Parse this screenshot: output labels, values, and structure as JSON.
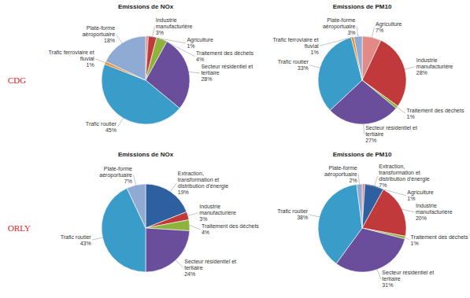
{
  "chart_data": [
    {
      "type": "pie",
      "title": "Emissions de NOx",
      "annotations": [
        "CDG"
      ],
      "categories": [
        "Agriculture",
        "Industrie manufacturière",
        "Traitement des déchets",
        "Secteur résidentiel et tertiaire",
        "Trafic routier",
        "Trafic ferroviaire et fluvial",
        "Plate-forme aéroportuaire"
      ],
      "values": [
        1,
        3,
        4,
        28,
        45,
        1,
        18
      ],
      "value_labels": [
        "1%",
        "3%",
        "4%",
        "28%",
        "45%",
        "1%",
        "18%"
      ],
      "colors": [
        "#e28b86",
        "#c0393b",
        "#8db33a",
        "#6a4d9b",
        "#3a9cc8",
        "#f08a24",
        "#8fabd4"
      ],
      "data_labels": true
    },
    {
      "type": "pie",
      "title": "Emissions de PM10",
      "categories": [
        "Agriculture",
        "Industrie manufacturière",
        "Traitement des déchets",
        "Secteur résidentiel et tertiaire",
        "Trafic routier",
        "Trafic ferroviaire et fluvial",
        "Plate-forme aéroportuaire"
      ],
      "values": [
        7,
        28,
        1,
        27,
        33,
        1,
        3
      ],
      "value_labels": [
        "7%",
        "28%",
        "1%",
        "27%",
        "33%",
        "1%",
        "3%"
      ],
      "colors": [
        "#e28b86",
        "#c0393b",
        "#8db33a",
        "#6a4d9b",
        "#3a9cc8",
        "#f08a24",
        "#8fabd4"
      ],
      "data_labels": true
    },
    {
      "type": "pie",
      "title": "Emissions de NOx",
      "annotations": [
        "ORLY"
      ],
      "categories": [
        "Extraction, transformation et distribution d'énergie",
        "Industrie manufacturière",
        "Traitement des déchets",
        "Secteur résidentiel et tertiaire",
        "Trafic routier",
        "Plate-forme aéroportuaire"
      ],
      "values": [
        19,
        3,
        4,
        24,
        43,
        7
      ],
      "value_labels": [
        "19%",
        "3%",
        "4%",
        "24%",
        "43%",
        "7%"
      ],
      "colors": [
        "#2e5f9e",
        "#c0393b",
        "#8db33a",
        "#6a4d9b",
        "#3a9cc8",
        "#8fabd4"
      ],
      "data_labels": true
    },
    {
      "type": "pie",
      "title": "Emissions de PM10",
      "categories": [
        "Agriculture",
        "Extraction, transformation et distribution d'énergie",
        "Industrie manufacturière",
        "Traitement des déchets",
        "Secteur résidentiel et tertiaire",
        "Trafic routier",
        "Plate-forme aéroportuaire"
      ],
      "values": [
        1,
        7,
        20,
        1,
        31,
        38,
        2
      ],
      "value_labels": [
        "1%",
        "7%",
        "20%",
        "1%",
        "31%",
        "38%",
        "2%"
      ],
      "colors": [
        "#e28b86",
        "#2e5f9e",
        "#c0393b",
        "#8db33a",
        "#6a4d9b",
        "#3a9cc8",
        "#8fabd4"
      ],
      "data_labels": true
    }
  ]
}
